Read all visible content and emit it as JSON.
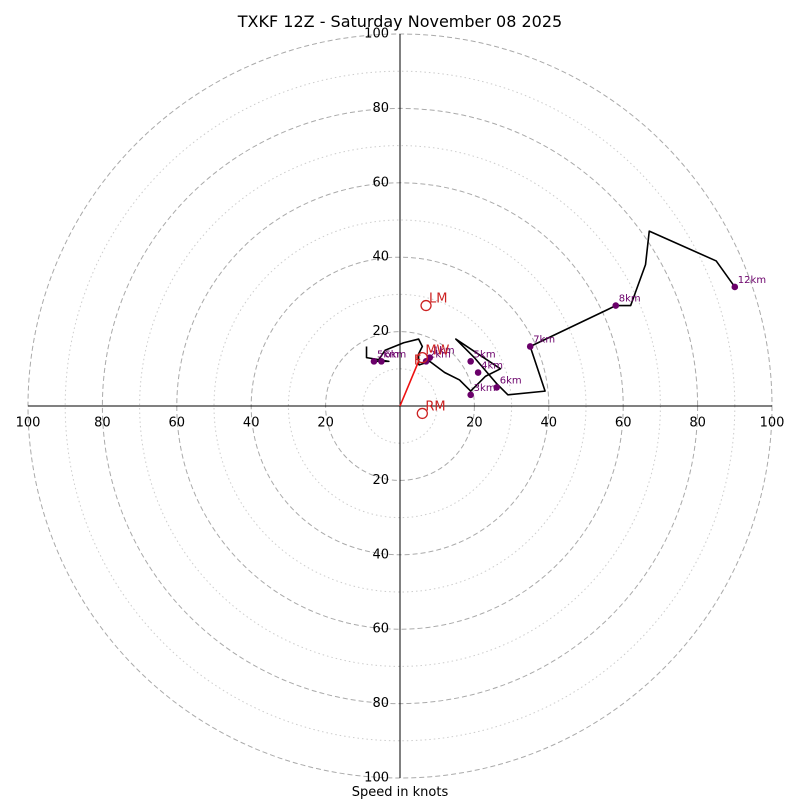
{
  "chart_data": {
    "type": "hodograph",
    "title": "TXKF 12Z - Saturday November 08 2025",
    "xlabel": "Speed in knots",
    "units": "knots",
    "range": [
      -100,
      100
    ],
    "ring_labels": [
      "20",
      "40",
      "60",
      "80",
      "100"
    ],
    "ring_values_major": [
      20,
      40,
      60,
      80,
      100
    ],
    "ring_values_minor": [
      10,
      30,
      50,
      70,
      90
    ],
    "colors": {
      "trace": "#000000",
      "height_marker": "#6a006a",
      "motion": "#cc2222",
      "shear_vector": "#ee1111",
      "ring": "#aaaaaa",
      "axis": "#000000"
    },
    "wind_trace": [
      {
        "u": 5,
        "v": 11
      },
      {
        "u": 8,
        "v": 12
      },
      {
        "u": 12,
        "v": 9
      },
      {
        "u": 16,
        "v": 7
      },
      {
        "u": 19,
        "v": 4
      },
      {
        "u": 23,
        "v": 8
      },
      {
        "u": 27,
        "v": 10
      },
      {
        "u": 21,
        "v": 14
      },
      {
        "u": 15,
        "v": 18
      },
      {
        "u": 20,
        "v": 13
      },
      {
        "u": 26,
        "v": 6
      },
      {
        "u": 29,
        "v": 3
      },
      {
        "u": 39,
        "v": 4
      },
      {
        "u": 35,
        "v": 16
      },
      {
        "u": 56,
        "v": 26
      },
      {
        "u": 58,
        "v": 27
      },
      {
        "u": 62,
        "v": 27
      },
      {
        "u": 66,
        "v": 38
      },
      {
        "u": 67,
        "v": 47
      },
      {
        "u": 85,
        "v": 39
      },
      {
        "u": 90,
        "v": 32
      }
    ],
    "trace_extra": [
      {
        "u": 5,
        "v": 11
      },
      {
        "u": 5,
        "v": 14
      },
      {
        "u": 6,
        "v": 16
      },
      {
        "u": 5,
        "v": 18
      },
      {
        "u": 1,
        "v": 17
      },
      {
        "u": -4,
        "v": 15
      },
      {
        "u": -6,
        "v": 12
      },
      {
        "u": -3,
        "v": 12
      },
      {
        "u": -9,
        "v": 13
      },
      {
        "u": -9,
        "v": 16
      }
    ],
    "height_markers": [
      {
        "label": "1km",
        "u": 8,
        "v": 13
      },
      {
        "label": "2km",
        "u": 7,
        "v": 12
      },
      {
        "label": "3km",
        "u": 19,
        "v": 3
      },
      {
        "label": "4km",
        "u": 21,
        "v": 9
      },
      {
        "label": "5km",
        "u": 19,
        "v": 12
      },
      {
        "label": "6km",
        "u": 26,
        "v": 5
      },
      {
        "label": "7km",
        "u": 35,
        "v": 16
      },
      {
        "label": "8km",
        "u": 58,
        "v": 27
      },
      {
        "label": "5km",
        "u": -7,
        "v": 12
      },
      {
        "label": "6km",
        "u": -5,
        "v": 12
      },
      {
        "label": "12km",
        "u": 90,
        "v": 32
      }
    ],
    "storm_motions": [
      {
        "label": "LM",
        "u": 7,
        "v": 27
      },
      {
        "label": "MW",
        "u": 6,
        "v": 13
      },
      {
        "label": "RM",
        "u": 6,
        "v": -2
      }
    ],
    "shear_vector": {
      "label": "F",
      "from": {
        "u": 0,
        "v": 0
      },
      "to": {
        "u": 5,
        "v": 12
      }
    }
  }
}
